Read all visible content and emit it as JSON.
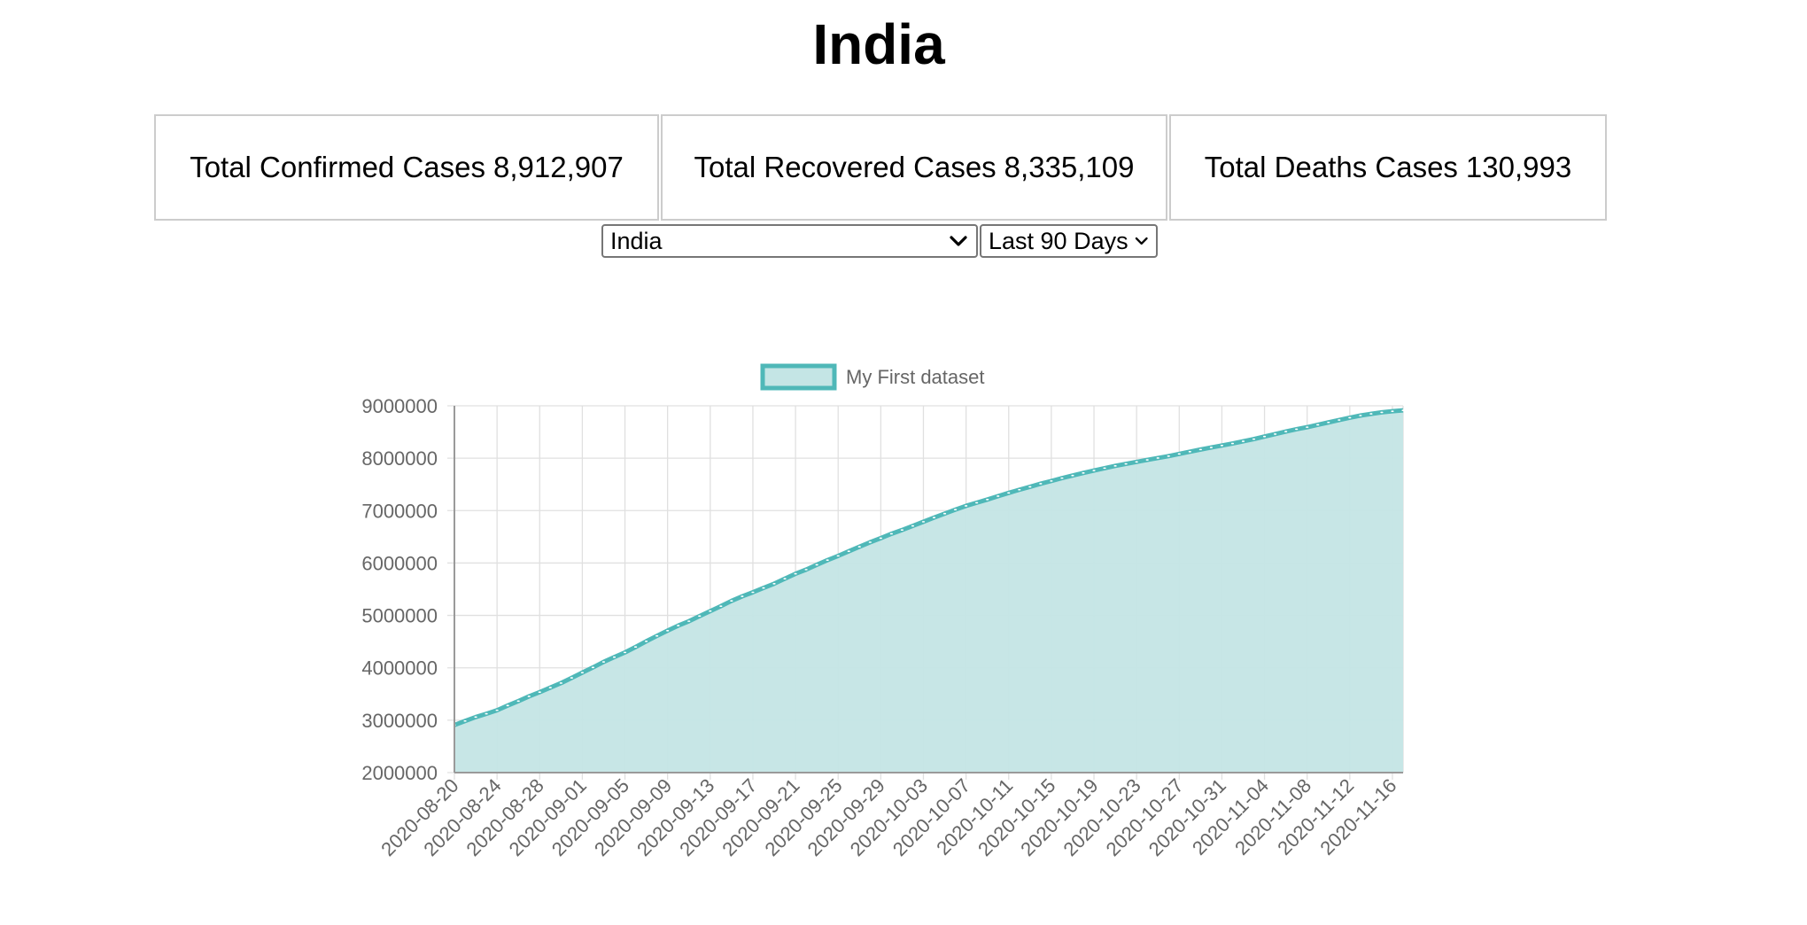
{
  "header": {
    "title": "India"
  },
  "stats": [
    {
      "label": "Total Confirmed Cases",
      "value": "8,912,907"
    },
    {
      "label": "Total Recovered Cases",
      "value": "8,335,109"
    },
    {
      "label": "Total Deaths Cases",
      "value": "130,993"
    }
  ],
  "controls": {
    "country": {
      "selected": "India"
    },
    "range": {
      "selected": "Last 90 Days"
    }
  },
  "colors": {
    "line": "#4fb8b8",
    "fill": "#c4e5e5",
    "grid": "#e0e0e0",
    "axis": "#9a9a9a"
  },
  "chart_data": {
    "type": "area",
    "title": "",
    "xlabel": "",
    "ylabel": "",
    "legend": "top-center",
    "grid": true,
    "series": [
      {
        "name": "My First dataset",
        "values": [
          2908000,
          2985000,
          3060000,
          3123000,
          3190000,
          3280000,
          3365000,
          3455000,
          3535000,
          3622000,
          3708000,
          3808000,
          3908000,
          4007000,
          4113000,
          4204000,
          4293000,
          4397000,
          4506000,
          4609000,
          4709000,
          4805000,
          4889000,
          4987000,
          5082000,
          5176000,
          5277000,
          5364000,
          5441000,
          5524000,
          5605000,
          5700000,
          5794000,
          5874000,
          5966000,
          6055000,
          6136000,
          6224000,
          6310000,
          6396000,
          6474000,
          6557000,
          6630000,
          6708000,
          6787000,
          6866000,
          6942000,
          7018000,
          7090000,
          7150000,
          7211000,
          7276000,
          7338000,
          7398000,
          7454000,
          7513000,
          7565000,
          7620000,
          7669000,
          7718000,
          7765000,
          7810000,
          7853000,
          7892000,
          7930000,
          7968000,
          8003000,
          8040000,
          8082000,
          8124000,
          8165000,
          8205000,
          8243000,
          8281000,
          8322000,
          8364000,
          8414000,
          8460000,
          8508000,
          8553000,
          8592000,
          8637000,
          8683000,
          8729000,
          8773000,
          8814000,
          8846000,
          8875000,
          8896000,
          8912907
        ]
      }
    ],
    "x_start": "2020-08-20",
    "x_end": "2020-11-17",
    "x_tick_labels": [
      "2020-08-20",
      "2020-08-24",
      "2020-08-28",
      "2020-09-01",
      "2020-09-05",
      "2020-09-09",
      "2020-09-13",
      "2020-09-17",
      "2020-09-21",
      "2020-09-25",
      "2020-09-29",
      "2020-10-03",
      "2020-10-07",
      "2020-10-11",
      "2020-10-15",
      "2020-10-19",
      "2020-10-23",
      "2020-10-27",
      "2020-10-31",
      "2020-11-04",
      "2020-11-08",
      "2020-11-12",
      "2020-11-16"
    ],
    "y_ticks": [
      "9000000",
      "8000000",
      "7000000",
      "6000000",
      "5000000",
      "4000000",
      "3000000",
      "2000000"
    ],
    "ylim": [
      2000000,
      9000000
    ]
  }
}
